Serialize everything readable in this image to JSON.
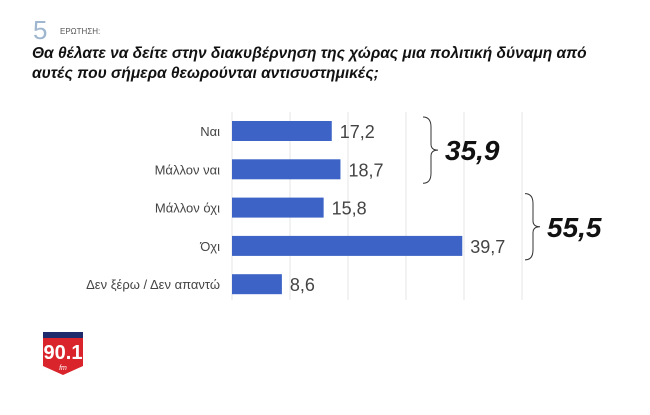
{
  "question_number": "5",
  "question_label": "ΕΡΩΤΗΣΗ:",
  "chart_data": {
    "type": "bar",
    "orientation": "horizontal",
    "title": "Θα θέλατε να δείτε στην διακυβέρνηση της χώρας μια πολιτική δύναμη από αυτές που σήμερα θεωρούνται αντισυστημικές;",
    "categories": [
      "Ναι",
      "Μάλλον ναι",
      "Μάλλον όχι",
      "Όχι",
      "Δεν ξέρω / Δεν απαντώ"
    ],
    "values": [
      17.2,
      18.7,
      15.8,
      39.7,
      8.6
    ],
    "value_labels": [
      "17,2",
      "18,7",
      "15,8",
      "39,7",
      "8,6"
    ],
    "xlim": [
      0,
      50
    ],
    "grid": true,
    "bar_color": "#3c63c5",
    "groups": [
      {
        "label": "35,9",
        "categories": [
          "Ναι",
          "Μάλλον ναι"
        ]
      },
      {
        "label": "55,5",
        "categories": [
          "Μάλλον όχι",
          "Όχι"
        ]
      }
    ]
  },
  "logo": {
    "text": "ΠΑΡΑΠΟΛΙΤΙΚΑ 90.1 fm",
    "color": "#d9242b"
  }
}
